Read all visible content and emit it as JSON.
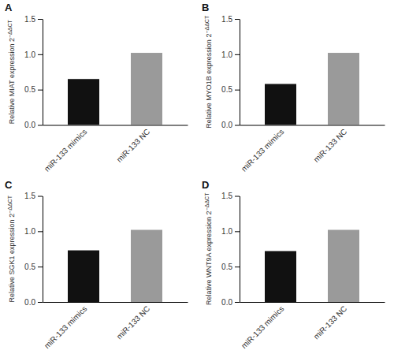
{
  "chart_data": [
    {
      "type": "bar",
      "title": "A",
      "y_label": "Relative MIAT expression 2−ΔΔCT",
      "categories": [
        "miR-133 mimics",
        "miR-133 NC"
      ],
      "values": [
        0.65,
        1.02
      ],
      "colors": [
        "#111111",
        "#9a9a9a"
      ],
      "ylim": [
        0,
        1.5
      ],
      "yticks": [
        {
          "value": 0.0,
          "label": "0.0"
        },
        {
          "value": 0.5,
          "label": "0.5"
        },
        {
          "value": 1.0,
          "label": "1.0"
        },
        {
          "value": 1.5,
          "label": "1.5"
        }
      ],
      "grid": false
    },
    {
      "type": "bar",
      "title": "B",
      "y_label": "Relative MYO1B expression 2−ΔΔCT",
      "categories": [
        "miR-133 mimics",
        "miR-133 NC"
      ],
      "values": [
        0.58,
        1.02
      ],
      "colors": [
        "#111111",
        "#9a9a9a"
      ],
      "ylim": [
        0,
        1.5
      ],
      "yticks": [
        {
          "value": 0.0,
          "label": "0.0"
        },
        {
          "value": 0.5,
          "label": "0.5"
        },
        {
          "value": 1.0,
          "label": "1.0"
        },
        {
          "value": 1.5,
          "label": "1.5"
        }
      ],
      "grid": false
    },
    {
      "type": "bar",
      "title": "C",
      "y_label": "Relative SGK1 expression 2−ΔΔCT",
      "categories": [
        "miR-133 mimics",
        "miR-133 NC"
      ],
      "values": [
        0.73,
        1.02
      ],
      "colors": [
        "#111111",
        "#9a9a9a"
      ],
      "ylim": [
        0,
        1.5
      ],
      "yticks": [
        {
          "value": 0.0,
          "label": "0.0"
        },
        {
          "value": 0.5,
          "label": "0.5"
        },
        {
          "value": 1.0,
          "label": "1.0"
        },
        {
          "value": 1.5,
          "label": "1.5"
        }
      ],
      "grid": false
    },
    {
      "type": "bar",
      "title": "D",
      "y_label": "Relative WNT9A expression 2−ΔΔCT",
      "categories": [
        "miR-133 mimics",
        "miR-133 NC"
      ],
      "values": [
        0.72,
        1.02
      ],
      "colors": [
        "#111111",
        "#9a9a9a"
      ],
      "ylim": [
        0,
        1.5
      ],
      "yticks": [
        {
          "value": 0.0,
          "label": "0.0"
        },
        {
          "value": 0.5,
          "label": "0.5"
        },
        {
          "value": 1.0,
          "label": "1.0"
        },
        {
          "value": 1.5,
          "label": "1.5"
        }
      ],
      "grid": false
    }
  ]
}
